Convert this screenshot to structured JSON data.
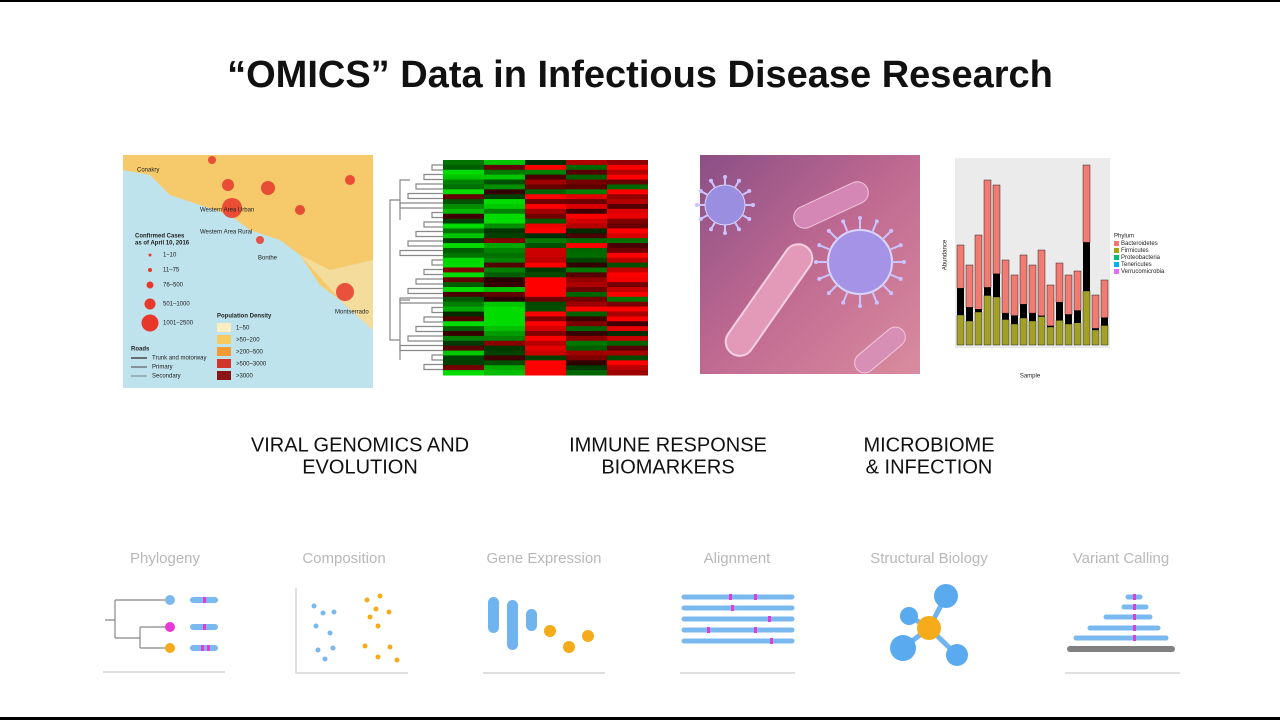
{
  "title": "“OMICS” Data in Infectious Disease Research",
  "map": {
    "legend_title": [
      "Confirmed Cases",
      "as of April 10, 2016"
    ],
    "case_classes": [
      "1–10",
      "11–75",
      "76–500",
      "501–1000",
      "1001–2500"
    ],
    "density_title": "Population Density",
    "density_classes": [
      "1–50",
      ">50–200",
      ">200–500",
      ">500–3000",
      ">3000"
    ],
    "roads_title": "Roads",
    "road_types": [
      "Trunk and motorway",
      "Primary",
      "Secondary"
    ],
    "places": [
      "Conakry",
      "Western Area Urban",
      "Western Area Rural",
      "Bonthe",
      "Montserrado"
    ]
  },
  "microbiome": {
    "legend_title": "Phylum",
    "phyla": [
      "Bacteroidetes",
      "Firmicutes",
      "Proteobacteria",
      "Tenericutes",
      "Verrucomicrobia"
    ],
    "y_label": "Abundance",
    "x_label": "Sample"
  },
  "panels": [
    [
      "VIRAL GENOMICS AND",
      "EVOLUTION"
    ],
    [
      "IMMUNE RESPONSE",
      "BIOMARKERS"
    ],
    [
      "MICROBIOME",
      "& INFECTION"
    ]
  ],
  "tools": [
    "Phylogeny",
    "Composition",
    "Gene Expression",
    "Alignment",
    "Structural Biology",
    "Variant Calling"
  ]
}
